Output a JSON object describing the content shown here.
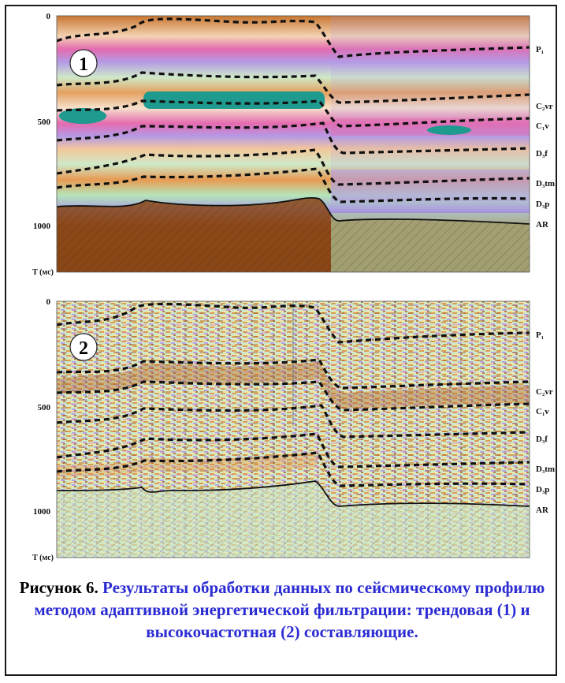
{
  "figure": {
    "panels": [
      {
        "id": "1",
        "ticks": [
          "0",
          "500",
          "1000"
        ],
        "axis_unit": "T (мс)",
        "horizons": [
          "P₁",
          "C₂vr",
          "C₁v",
          "D₃f",
          "D₃tm",
          "D₃p",
          "AR"
        ]
      },
      {
        "id": "2",
        "ticks": [
          "0",
          "500",
          "1000"
        ],
        "axis_unit": "T (мс)",
        "horizons": [
          "P₁",
          "C₂vr",
          "C₁v",
          "D₃f",
          "D₃tm",
          "D₃p",
          "AR"
        ]
      }
    ]
  },
  "caption": {
    "lead": "Рисунок 6.",
    "rest": "Результаты обработки данных по сейсмическому профилю методом адаптивной энергетической фильтрации: трендовая (1) и высокочастотная (2) составляющие."
  },
  "colors": {
    "brown": "#a8561c",
    "orange": "#e08a3a",
    "pink": "#e56bb0",
    "lavender": "#b49ae6",
    "green": "#9fe0a0",
    "teal": "#1e9a8f",
    "caption_blue": "#2b2bd4"
  }
}
